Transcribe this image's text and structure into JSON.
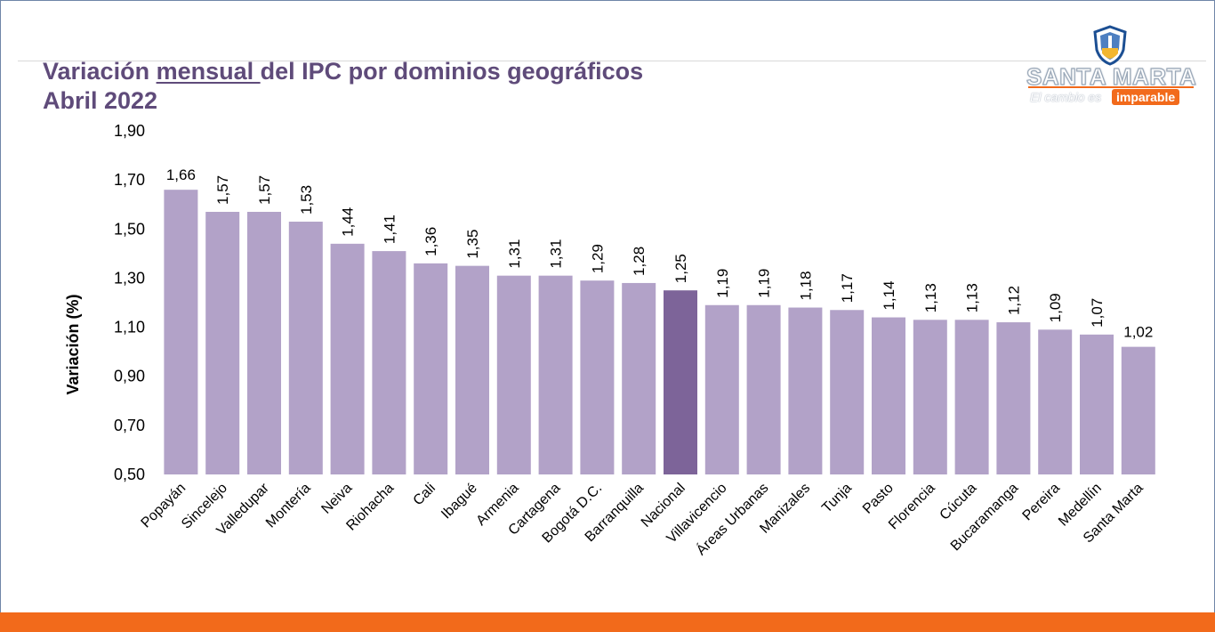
{
  "title": {
    "line1_before": "Variación ",
    "line1_underlined": "mensual ",
    "line1_after": "del IPC por dominios geográficos",
    "line2": "Abril 2022"
  },
  "logo": {
    "name": "SANTA MARTA",
    "tagline": "El cambio es",
    "badge": "imparable"
  },
  "colors": {
    "bar": "#b2a2c8",
    "highlight_bar": "#7d6499",
    "title": "#5f4b7a",
    "accent": "#f26a1b"
  },
  "chart_data": {
    "type": "bar",
    "ylabel": "Variación (%)",
    "ylim": [
      0.5,
      1.9
    ],
    "yticks": [
      "1,90",
      "1,70",
      "1,50",
      "1,30",
      "1,10",
      "0,90",
      "0,70",
      "0,50"
    ],
    "ytick_values": [
      1.9,
      1.7,
      1.5,
      1.3,
      1.1,
      0.9,
      0.7,
      0.5
    ],
    "categories": [
      "Popayán",
      "Sincelejo",
      "Valledupar",
      "Montería",
      "Neiva",
      "Riohacha",
      "Cali",
      "Ibagué",
      "Armenia",
      "Cartagena",
      "Bogotá D.C.",
      "Barranquilla",
      "Nacional",
      "Villavicencio",
      "Áreas Urbanas",
      "Manizales",
      "Tunja",
      "Pasto",
      "Florencia",
      "Cúcuta",
      "Bucaramanga",
      "Pereira",
      "Medellín",
      "Santa Marta"
    ],
    "values": [
      1.66,
      1.57,
      1.57,
      1.53,
      1.44,
      1.41,
      1.36,
      1.35,
      1.31,
      1.31,
      1.29,
      1.28,
      1.25,
      1.19,
      1.19,
      1.18,
      1.17,
      1.14,
      1.13,
      1.13,
      1.12,
      1.09,
      1.07,
      1.02
    ],
    "value_labels": [
      "1,66",
      "1,57",
      "1,57",
      "1,53",
      "1,44",
      "1,41",
      "1,36",
      "1,35",
      "1,31",
      "1,31",
      "1,29",
      "1,28",
      "1,25",
      "1,19",
      "1,19",
      "1,18",
      "1,17",
      "1,14",
      "1,13",
      "1,13",
      "1,12",
      "1,09",
      "1,07",
      "1,02"
    ],
    "highlight": "Nacional",
    "grid": false,
    "legend": "none"
  }
}
